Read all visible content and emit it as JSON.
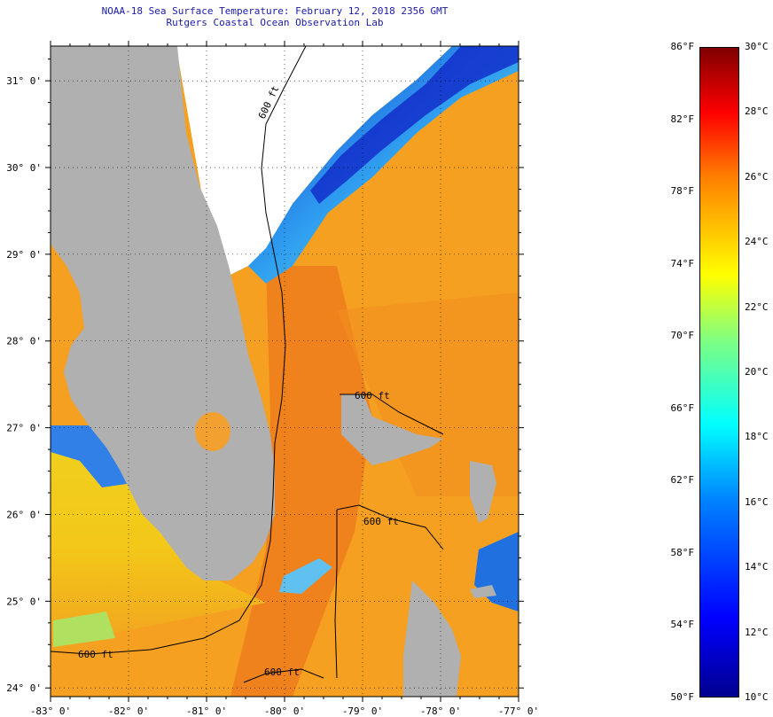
{
  "title": {
    "line1": "NOAA-18 Sea Surface Temperature:  February 12, 2018 2356 GMT",
    "line2": "Rutgers Coastal Ocean Observation Lab"
  },
  "map": {
    "lon_range": [
      -83,
      -77
    ],
    "lat_range": [
      23.9,
      31.4
    ],
    "lon_ticks": [
      "-83° 0'",
      "-82° 0'",
      "-81° 0'",
      "-80° 0'",
      "-79° 0'",
      "-78° 0'",
      "-77° 0'"
    ],
    "lat_ticks": [
      "24° 0'",
      "25° 0'",
      "26° 0'",
      "27° 0'",
      "28° 0'",
      "29° 0'",
      "30° 0'",
      "31° 0'"
    ],
    "contour_labels": [
      "600 ft",
      "600 ft",
      "600 ft",
      "600 ft",
      "600 ft"
    ],
    "land_color": "#b0b0b0",
    "water_color": "#f5a020"
  },
  "colorbar": {
    "fahrenheit": [
      "86°F",
      "82°F",
      "78°F",
      "74°F",
      "70°F",
      "66°F",
      "62°F",
      "58°F",
      "54°F",
      "50°F"
    ],
    "celsius": [
      "30°C",
      "28°C",
      "26°C",
      "24°C",
      "22°C",
      "20°C",
      "18°C",
      "16°C",
      "14°C",
      "12°C",
      "10°C"
    ],
    "range_f": [
      50,
      86
    ],
    "range_c": [
      10,
      30
    ]
  }
}
